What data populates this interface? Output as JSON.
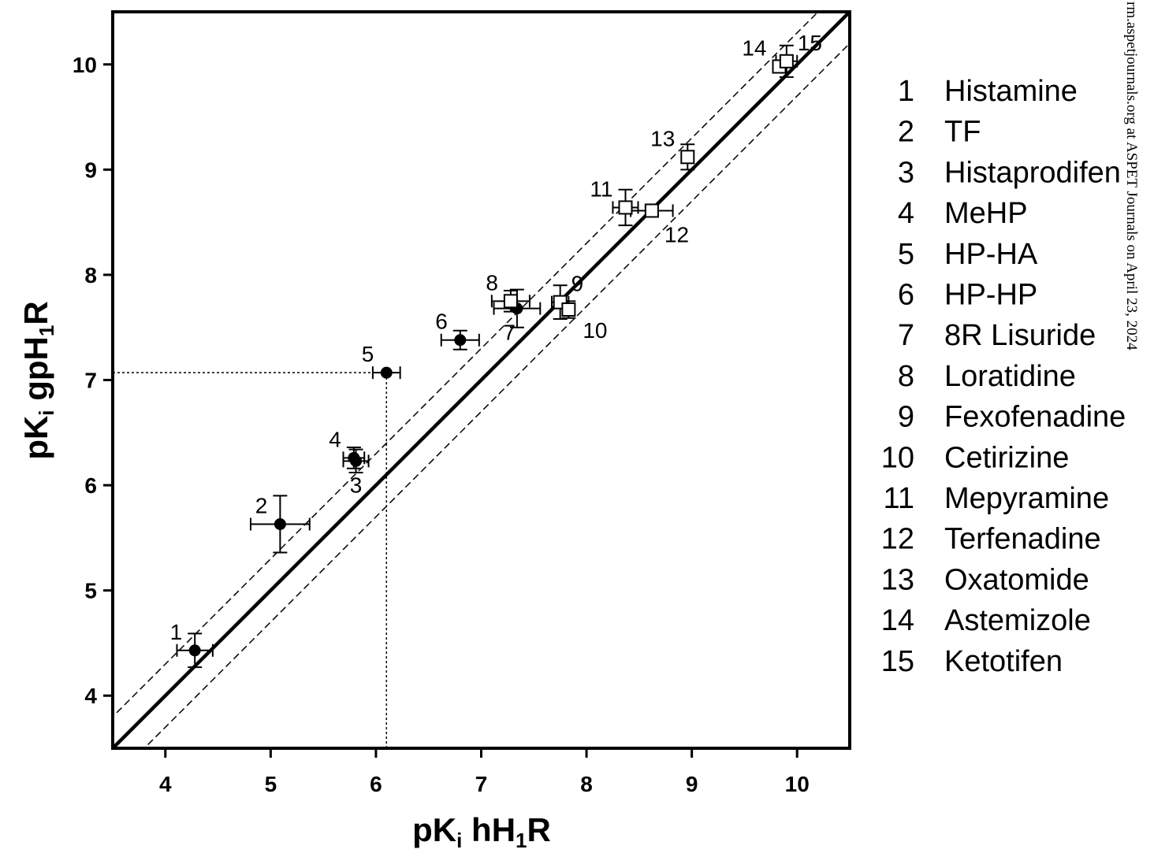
{
  "chart_data": {
    "type": "scatter",
    "xlabel": {
      "main": "pK",
      "sub1": "i",
      "mid": " hH",
      "sub2": "1",
      "end": "R"
    },
    "ylabel": {
      "main": "pK",
      "sub1": "i",
      "mid": " gpH",
      "sub2": "1",
      "end": "R"
    },
    "xlim": [
      3.5,
      10.5
    ],
    "ylim": [
      3.5,
      10.5
    ],
    "xticks": [
      4,
      5,
      6,
      7,
      8,
      9,
      10
    ],
    "yticks": [
      4,
      5,
      6,
      7,
      8,
      9,
      10
    ],
    "grid": false,
    "reference_lines": [
      {
        "kind": "identity",
        "style": "solid-thick",
        "offset": 0
      },
      {
        "kind": "identity",
        "style": "dashed",
        "offset": 0.3
      },
      {
        "kind": "identity",
        "style": "dashed",
        "offset": -0.3
      }
    ],
    "guide_lines": {
      "x": 6.1,
      "y": 7.07,
      "style": "dotted"
    },
    "series": [
      {
        "marker": "filled-circle",
        "color": "#000000",
        "points": [
          {
            "id": "1",
            "x": 4.28,
            "y": 4.43,
            "xerr": 0.17,
            "yerr": 0.16
          },
          {
            "id": "2",
            "x": 5.09,
            "y": 5.63,
            "xerr": 0.28,
            "yerr": 0.27
          },
          {
            "id": "3",
            "x": 5.81,
            "y": 6.23,
            "xerr": 0.12,
            "yerr": 0.11
          },
          {
            "id": "4",
            "x": 5.79,
            "y": 6.26,
            "xerr": 0.1,
            "yerr": 0.1
          },
          {
            "id": "5",
            "x": 6.1,
            "y": 7.07,
            "xerr": 0.13,
            "yerr": 0.0
          },
          {
            "id": "6",
            "x": 6.8,
            "y": 7.38,
            "xerr": 0.18,
            "yerr": 0.09
          },
          {
            "id": "7",
            "x": 7.34,
            "y": 7.68,
            "xerr": 0.22,
            "yerr": 0.18
          }
        ]
      },
      {
        "marker": "open-square",
        "color": "#000000",
        "points": [
          {
            "id": "8",
            "x": 7.28,
            "y": 7.75,
            "xerr": 0.18,
            "yerr": 0.1
          },
          {
            "id": "9",
            "x": 7.75,
            "y": 7.74,
            "xerr": 0.08,
            "yerr": 0.16
          },
          {
            "id": "10",
            "x": 7.83,
            "y": 7.67,
            "xerr": 0.05,
            "yerr": 0.08
          },
          {
            "id": "11",
            "x": 8.37,
            "y": 8.64,
            "xerr": 0.12,
            "yerr": 0.17
          },
          {
            "id": "12",
            "x": 8.62,
            "y": 8.61,
            "xerr": 0.2,
            "yerr": 0.04
          },
          {
            "id": "13",
            "x": 8.96,
            "y": 9.12,
            "xerr": 0.05,
            "yerr": 0.12
          },
          {
            "id": "14",
            "x": 9.83,
            "y": 9.98,
            "xerr": 0.05,
            "yerr": 0.05
          },
          {
            "id": "15",
            "x": 9.9,
            "y": 10.03,
            "xerr": 0.1,
            "yerr": 0.15
          }
        ]
      }
    ],
    "point_labels": [
      {
        "text": "1",
        "anchor": "1",
        "place": "above-left"
      },
      {
        "text": "2",
        "anchor": "2",
        "place": "above-left"
      },
      {
        "text": "3",
        "anchor": "3",
        "place": "below"
      },
      {
        "text": "4",
        "anchor": "4",
        "place": "above-left"
      },
      {
        "text": "5",
        "anchor": "5",
        "place": "above-left"
      },
      {
        "text": "6",
        "anchor": "6",
        "place": "above-left"
      },
      {
        "text": "7",
        "anchor": "7",
        "place": "below-left"
      },
      {
        "text": "8",
        "anchor": "8",
        "place": "above-left"
      },
      {
        "text": "9",
        "anchor": "9",
        "place": "above-right"
      },
      {
        "text": "10",
        "anchor": "10",
        "place": "right"
      },
      {
        "text": "11",
        "anchor": "11",
        "place": "above-left"
      },
      {
        "text": "12",
        "anchor": "12",
        "place": "below-right"
      },
      {
        "text": "13",
        "anchor": "13",
        "place": "above-left"
      },
      {
        "text": "14",
        "anchor": "14",
        "place": "above-left"
      },
      {
        "text": "15",
        "anchor": "15",
        "place": "above-right"
      }
    ],
    "legend": {
      "placement": "right",
      "entries": [
        {
          "num": "1",
          "name": "Histamine"
        },
        {
          "num": "2",
          "name": "TF"
        },
        {
          "num": "3",
          "name": "Histaprodifen"
        },
        {
          "num": "4",
          "name": "MeHP"
        },
        {
          "num": "5",
          "name": "HP-HA"
        },
        {
          "num": "6",
          "name": "HP-HP"
        },
        {
          "num": "7",
          "name": "8R Lisuride"
        },
        {
          "num": "8",
          "name": "Loratidine"
        },
        {
          "num": "9",
          "name": "Fexofenadine"
        },
        {
          "num": "10",
          "name": "Cetirizine"
        },
        {
          "num": "11",
          "name": "Mepyramine"
        },
        {
          "num": "12",
          "name": "Terfenadine"
        },
        {
          "num": "13",
          "name": "Oxatomide"
        },
        {
          "num": "14",
          "name": "Astemizole"
        },
        {
          "num": "15",
          "name": "Ketotifen"
        }
      ]
    }
  },
  "watermark": "rm.aspetjournals.org at ASPET Journals on April 23, 2024"
}
